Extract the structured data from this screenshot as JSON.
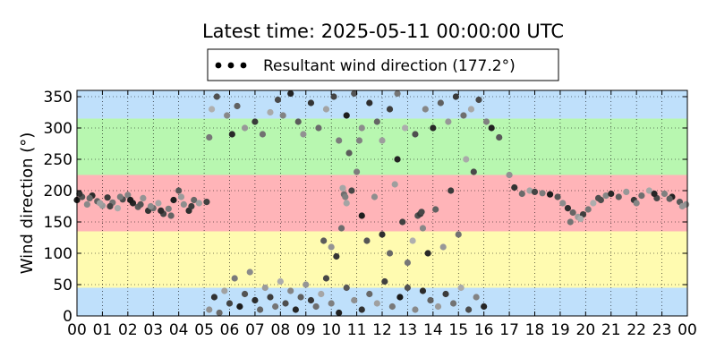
{
  "chart_data": {
    "type": "scatter",
    "title": "Latest time: 2025-05-11 00:00:00 UTC",
    "xlabel": "",
    "ylabel": "Wind direction (°)",
    "xlim": [
      0,
      24
    ],
    "ylim": [
      0,
      360
    ],
    "x_tick_labels": [
      "00",
      "01",
      "02",
      "03",
      "04",
      "05",
      "06",
      "07",
      "08",
      "09",
      "10",
      "11",
      "12",
      "13",
      "14",
      "15",
      "16",
      "17",
      "18",
      "19",
      "20",
      "21",
      "22",
      "23",
      "00"
    ],
    "y_ticks": [
      0,
      50,
      100,
      150,
      200,
      250,
      300,
      350
    ],
    "grid": true,
    "legend": {
      "placement": "top-center",
      "label": "Resultant wind direction (177.2°)",
      "marker_color": "#000000"
    },
    "background_bands": [
      {
        "from": 0,
        "to": 45,
        "color": "#bfe0fb"
      },
      {
        "from": 45,
        "to": 135,
        "color": "#fffbb0"
      },
      {
        "from": 135,
        "to": 225,
        "color": "#ffb4b8"
      },
      {
        "from": 225,
        "to": 315,
        "color": "#b8f7b0"
      },
      {
        "from": 315,
        "to": 360,
        "color": "#bfe0fb"
      }
    ],
    "marker_gray_range": [
      "#1a1a1a",
      "#b0b0b0"
    ],
    "series": [
      {
        "values": [
          [
            0.0,
            185
          ],
          [
            0.2,
            190
          ],
          [
            0.4,
            178
          ],
          [
            0.6,
            192
          ],
          [
            0.8,
            183
          ],
          [
            1.0,
            176
          ],
          [
            1.2,
            189
          ],
          [
            1.4,
            181
          ],
          [
            1.6,
            172
          ],
          [
            1.8,
            186
          ],
          [
            2.0,
            193
          ],
          [
            2.2,
            180
          ],
          [
            2.4,
            174
          ],
          [
            2.6,
            188
          ],
          [
            2.8,
            168
          ],
          [
            3.0,
            172
          ],
          [
            3.2,
            180
          ],
          [
            3.4,
            163
          ],
          [
            3.6,
            171
          ],
          [
            3.8,
            185
          ],
          [
            4.0,
            200
          ],
          [
            4.2,
            178
          ],
          [
            4.4,
            168
          ],
          [
            4.6,
            185
          ],
          [
            4.8,
            180
          ],
          [
            5.1,
            182
          ],
          [
            5.2,
            285
          ],
          [
            5.3,
            330
          ],
          [
            5.5,
            350
          ],
          [
            5.9,
            320
          ],
          [
            6.1,
            290
          ],
          [
            6.3,
            335
          ],
          [
            6.6,
            300
          ],
          [
            7.0,
            310
          ],
          [
            7.3,
            290
          ],
          [
            7.6,
            325
          ],
          [
            7.9,
            345
          ],
          [
            8.1,
            320
          ],
          [
            8.4,
            355
          ],
          [
            8.7,
            310
          ],
          [
            8.9,
            290
          ],
          [
            9.2,
            340
          ],
          [
            9.5,
            300
          ],
          [
            9.8,
            330
          ],
          [
            10.1,
            350
          ],
          [
            10.3,
            280
          ],
          [
            10.6,
            320
          ],
          [
            10.9,
            355
          ],
          [
            11.2,
            300
          ],
          [
            11.5,
            340
          ],
          [
            11.8,
            310
          ],
          [
            12.0,
            280
          ],
          [
            12.3,
            330
          ],
          [
            12.6,
            355
          ],
          [
            12.9,
            300
          ],
          [
            13.3,
            290
          ],
          [
            13.7,
            330
          ],
          [
            14.0,
            300
          ],
          [
            14.3,
            340
          ],
          [
            14.6,
            310
          ],
          [
            14.9,
            350
          ],
          [
            15.2,
            320
          ],
          [
            15.5,
            330
          ],
          [
            15.8,
            345
          ],
          [
            16.1,
            310
          ],
          [
            16.3,
            300
          ],
          [
            16.6,
            285
          ],
          [
            5.2,
            10
          ],
          [
            5.4,
            30
          ],
          [
            5.6,
            5
          ],
          [
            5.8,
            40
          ],
          [
            6.0,
            20
          ],
          [
            6.2,
            60
          ],
          [
            6.4,
            15
          ],
          [
            6.6,
            35
          ],
          [
            6.8,
            70
          ],
          [
            7.0,
            25
          ],
          [
            7.2,
            10
          ],
          [
            7.4,
            45
          ],
          [
            7.6,
            30
          ],
          [
            7.8,
            15
          ],
          [
            8.0,
            55
          ],
          [
            8.2,
            20
          ],
          [
            8.4,
            40
          ],
          [
            8.6,
            10
          ],
          [
            8.8,
            30
          ],
          [
            9.0,
            50
          ],
          [
            9.2,
            25
          ],
          [
            9.4,
            15
          ],
          [
            9.6,
            35
          ],
          [
            9.8,
            60
          ],
          [
            10.0,
            20
          ],
          [
            10.3,
            5
          ],
          [
            10.6,
            45
          ],
          [
            10.9,
            25
          ],
          [
            11.2,
            10
          ],
          [
            11.5,
            35
          ],
          [
            11.8,
            20
          ],
          [
            12.1,
            55
          ],
          [
            12.4,
            15
          ],
          [
            12.7,
            30
          ],
          [
            13.0,
            45
          ],
          [
            13.3,
            10
          ],
          [
            13.6,
            40
          ],
          [
            13.9,
            25
          ],
          [
            14.2,
            15
          ],
          [
            14.5,
            35
          ],
          [
            14.8,
            20
          ],
          [
            15.1,
            45
          ],
          [
            15.4,
            10
          ],
          [
            15.7,
            30
          ],
          [
            16.0,
            15
          ],
          [
            9.7,
            120
          ],
          [
            10.0,
            110
          ],
          [
            10.2,
            95
          ],
          [
            10.4,
            140
          ],
          [
            10.6,
            180
          ],
          [
            10.8,
            200
          ],
          [
            11.0,
            230
          ],
          [
            11.2,
            160
          ],
          [
            11.4,
            120
          ],
          [
            11.7,
            190
          ],
          [
            12.0,
            130
          ],
          [
            12.3,
            100
          ],
          [
            12.5,
            210
          ],
          [
            12.8,
            150
          ],
          [
            13.0,
            85
          ],
          [
            13.2,
            120
          ],
          [
            13.4,
            160
          ],
          [
            13.6,
            140
          ],
          [
            13.8,
            100
          ],
          [
            14.1,
            170
          ],
          [
            14.4,
            110
          ],
          [
            14.7,
            200
          ],
          [
            15.0,
            130
          ],
          [
            15.3,
            250
          ],
          [
            15.6,
            230
          ],
          [
            11.1,
            280
          ],
          [
            12.6,
            250
          ],
          [
            10.7,
            260
          ],
          [
            17.0,
            225
          ],
          [
            17.2,
            205
          ],
          [
            17.5,
            195
          ],
          [
            17.8,
            200
          ],
          [
            18.0,
            198
          ],
          [
            18.3,
            196
          ],
          [
            18.6,
            194
          ],
          [
            18.9,
            190
          ],
          [
            19.1,
            180
          ],
          [
            19.3,
            172
          ],
          [
            19.5,
            165
          ],
          [
            19.7,
            158
          ],
          [
            19.9,
            162
          ],
          [
            20.1,
            170
          ],
          [
            20.3,
            180
          ],
          [
            20.5,
            188
          ],
          [
            20.8,
            192
          ],
          [
            21.0,
            195
          ],
          [
            21.3,
            190
          ],
          [
            21.6,
            198
          ],
          [
            21.9,
            185
          ],
          [
            22.2,
            192
          ],
          [
            22.5,
            200
          ],
          [
            22.8,
            188
          ],
          [
            23.1,
            195
          ],
          [
            23.4,
            190
          ],
          [
            23.7,
            182
          ],
          [
            23.95,
            178
          ],
          [
            0.1,
            195
          ],
          [
            0.5,
            188
          ],
          [
            0.9,
            180
          ],
          [
            1.3,
            175
          ],
          [
            1.7,
            190
          ],
          [
            2.1,
            185
          ],
          [
            2.5,
            178
          ],
          [
            2.9,
            175
          ],
          [
            3.3,
            168
          ],
          [
            3.7,
            160
          ],
          [
            4.1,
            190
          ],
          [
            4.5,
            175
          ],
          [
            19.4,
            150
          ],
          [
            19.8,
            155
          ],
          [
            20.6,
            185
          ],
          [
            22.0,
            180
          ],
          [
            22.7,
            195
          ],
          [
            23.3,
            187
          ],
          [
            23.8,
            175
          ],
          [
            13.5,
            163
          ],
          [
            10.5,
            194
          ],
          [
            10.45,
            204
          ],
          [
            13.55,
            166
          ],
          [
            10.55,
            190
          ]
        ]
      }
    ]
  }
}
